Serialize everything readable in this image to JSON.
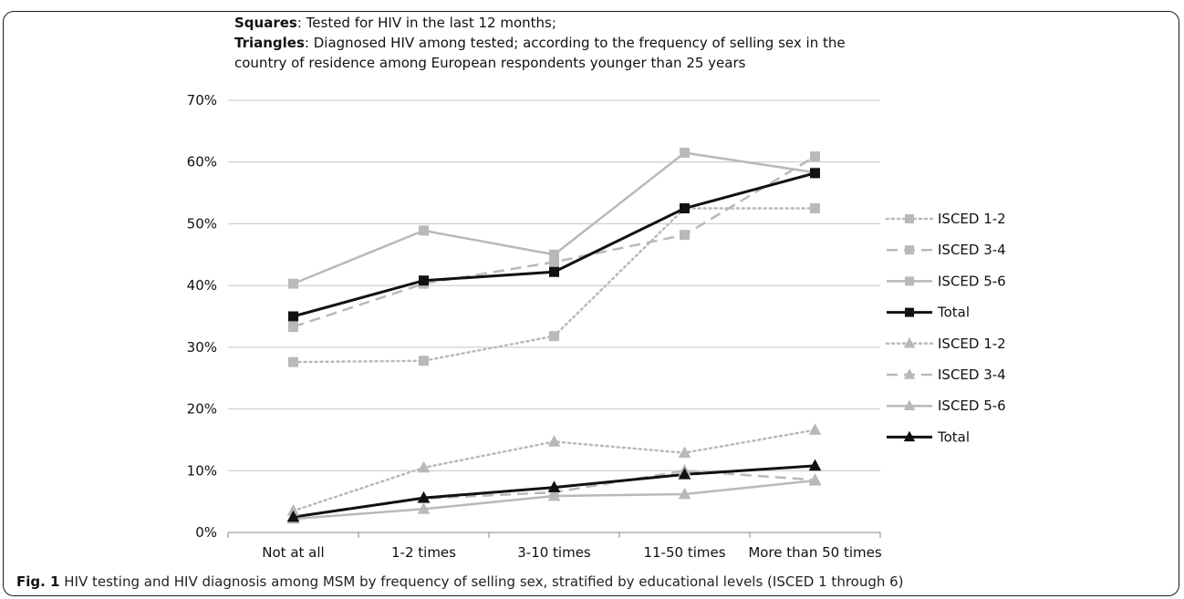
{
  "notes": [
    {
      "bold": "Squares",
      "text": ": Tested for HIV in the last 12 months;"
    },
    {
      "bold": "Triangles",
      "text": ": Diagnosed HIV among tested; according to the frequency of selling sex in the"
    },
    {
      "bold": "",
      "text": "country of residence among European respondents younger than 25 years"
    }
  ],
  "caption": {
    "label": "Fig. 1",
    "text": " HIV testing and HIV diagnosis among MSM by frequency of selling sex, stratified by educational levels (ISCED 1 through 6)"
  },
  "chart_data": {
    "type": "line",
    "categories": [
      "Not at all",
      "1-2 times",
      "3-10 times",
      "11-50 times",
      "More than 50 times"
    ],
    "ylim": [
      0,
      70
    ],
    "yticks": [
      0,
      10,
      20,
      30,
      40,
      50,
      60,
      70
    ],
    "ytick_labels": [
      "0%",
      "10%",
      "20%",
      "30%",
      "40%",
      "50%",
      "60%",
      "70%"
    ],
    "grid": "horizontal",
    "legend": "right",
    "series": [
      {
        "name": "ISCED 1-2",
        "marker": "square",
        "line": "dotted",
        "color": "#b9b9b9",
        "values": [
          27.6,
          27.8,
          31.8,
          52.5,
          52.5
        ]
      },
      {
        "name": "ISCED 3-4",
        "marker": "square",
        "line": "dashed",
        "color": "#b9b9b9",
        "values": [
          33.3,
          40.3,
          43.8,
          48.2,
          60.9
        ]
      },
      {
        "name": "ISCED 5-6",
        "marker": "square",
        "line": "solid",
        "color": "#b9b9b9",
        "values": [
          40.3,
          48.9,
          45.0,
          61.5,
          58.3
        ]
      },
      {
        "name": "Total",
        "marker": "square",
        "line": "solid",
        "color": "#111111",
        "values": [
          35.0,
          40.8,
          42.2,
          52.5,
          58.2
        ]
      },
      {
        "name": "ISCED 1-2",
        "marker": "triangle",
        "line": "dotted",
        "color": "#b9b9b9",
        "values": [
          3.5,
          10.5,
          14.7,
          12.9,
          16.6
        ]
      },
      {
        "name": "ISCED 3-4",
        "marker": "triangle",
        "line": "dashed",
        "color": "#b9b9b9",
        "values": [
          2.5,
          5.5,
          6.5,
          10.0,
          8.5
        ]
      },
      {
        "name": "ISCED 5-6",
        "marker": "triangle",
        "line": "solid",
        "color": "#b9b9b9",
        "values": [
          2.2,
          3.8,
          5.9,
          6.2,
          8.4
        ]
      },
      {
        "name": "Total",
        "marker": "triangle",
        "line": "solid",
        "color": "#111111",
        "values": [
          2.5,
          5.6,
          7.3,
          9.4,
          10.8
        ]
      }
    ]
  }
}
